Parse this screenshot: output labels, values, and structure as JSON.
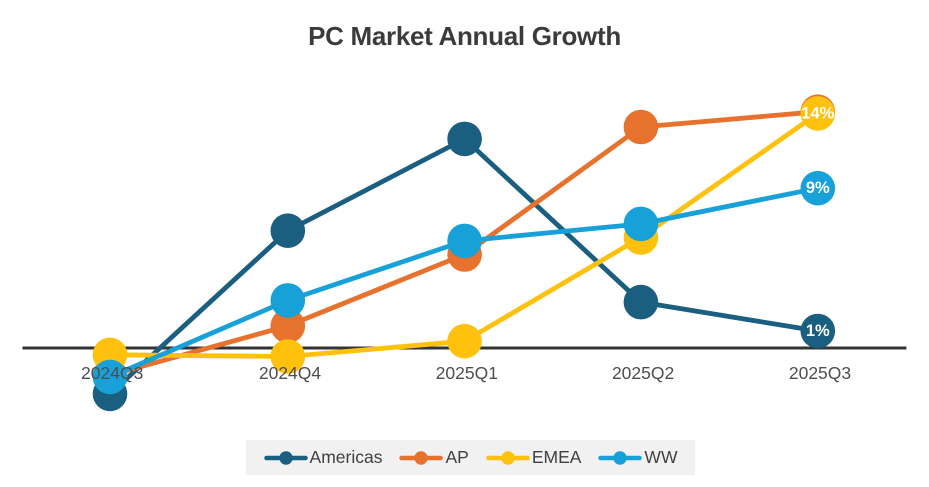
{
  "chart_data": {
    "type": "line",
    "title": "PC Market Annual Growth",
    "categories": [
      "2024Q3",
      "2024Q4",
      "2025Q1",
      "2025Q2",
      "2025Q3"
    ],
    "series": [
      {
        "name": "Americas",
        "color": "#1a5e80",
        "values": [
          -2.7,
          6.9,
          12.3,
          2.7,
          1.0
        ],
        "end_label": "1%"
      },
      {
        "name": "AP",
        "color": "#e6722e",
        "values": [
          -1.6,
          1.3,
          5.5,
          13.0,
          13.9
        ],
        "end_label": "14%"
      },
      {
        "name": "EMEA",
        "color": "#fec10d",
        "values": [
          -0.4,
          -0.5,
          0.4,
          6.5,
          13.8
        ],
        "end_label": "14%"
      },
      {
        "name": "WW",
        "color": "#18a1d9",
        "values": [
          -1.7,
          2.8,
          6.3,
          7.3,
          9.4
        ],
        "end_label": "9%"
      }
    ],
    "xlabel": "",
    "ylabel": "",
    "ylim": [
      -3.5,
      15
    ],
    "grid": false,
    "legend_position": "bottom",
    "axis_color": "#333333",
    "category_label_color": "#4e4e4e",
    "data_label_color": "#ffffff",
    "title_color": "#3b3b3b",
    "legend_background": "#f1f1f1",
    "legend_text_color": "#404040",
    "background_color": "#ffffff"
  }
}
